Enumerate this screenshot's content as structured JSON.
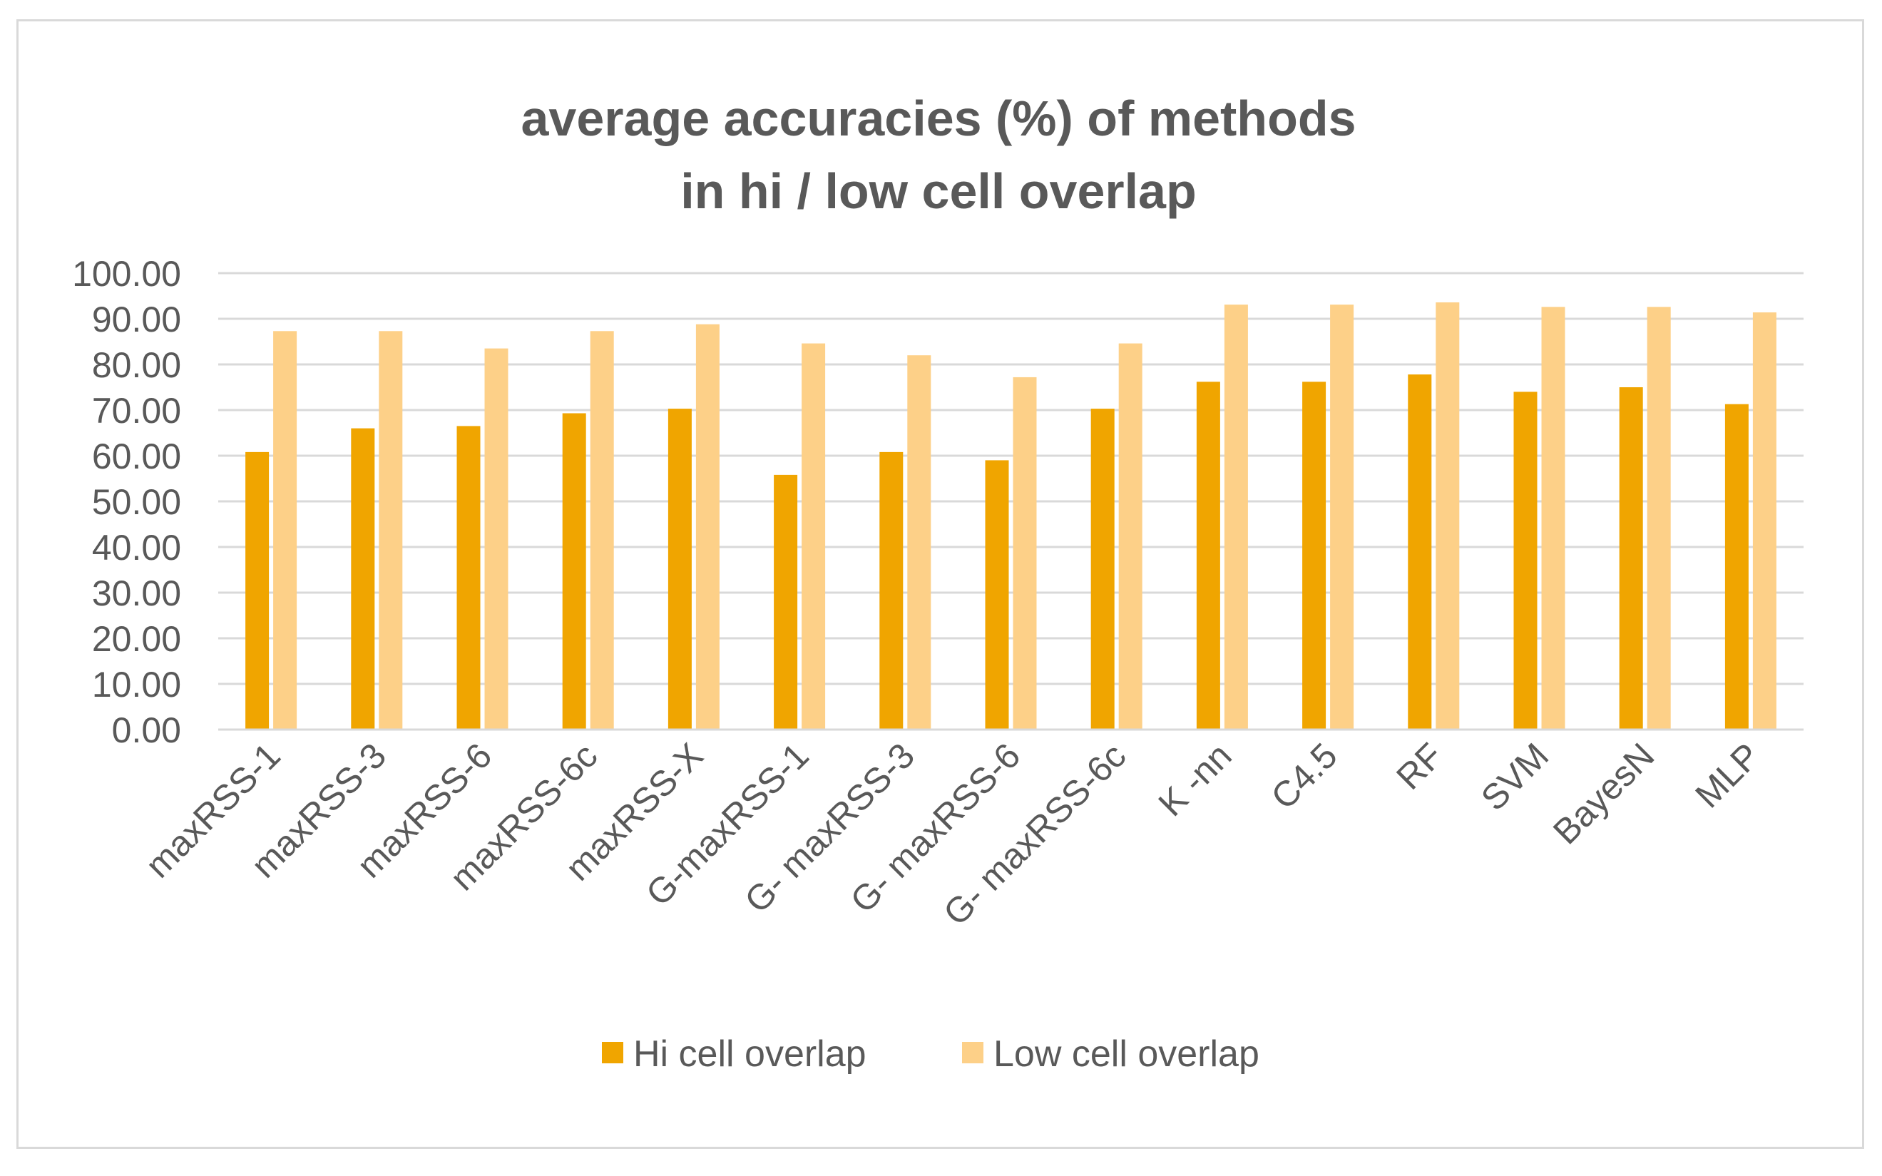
{
  "chart_data": {
    "type": "bar",
    "title_lines": [
      "average accuracies (%) of methods",
      "in hi / low cell overlap"
    ],
    "xlabel": "",
    "ylabel": "",
    "ylim": [
      0,
      100
    ],
    "ytick_step": 10,
    "ytick_labels": [
      "0.00",
      "10.00",
      "20.00",
      "30.00",
      "40.00",
      "50.00",
      "60.00",
      "70.00",
      "80.00",
      "90.00",
      "100.00"
    ],
    "grid": true,
    "legend_position": "bottom",
    "categories": [
      "maxRSS-1",
      "maxRSS-3",
      "maxRSS-6",
      "maxRSS-6c",
      "maxRSS-X",
      "G-maxRSS-1",
      "G- maxRSS-3",
      "G- maxRSS-6",
      "G- maxRSS-6c",
      "K -nn",
      "C4.5",
      "RF",
      "SVM",
      "BayesN",
      "MLP"
    ],
    "series": [
      {
        "name": "Hi cell overlap",
        "color": "#f0a500",
        "values": [
          60.8,
          66.0,
          66.5,
          69.3,
          70.3,
          55.8,
          60.8,
          59.0,
          70.3,
          76.2,
          76.2,
          77.8,
          74.0,
          75.0,
          71.3
        ]
      },
      {
        "name": "Low cell overlap",
        "color": "#fdd088",
        "values": [
          87.3,
          87.3,
          83.5,
          87.3,
          88.8,
          84.6,
          82.0,
          77.2,
          84.6,
          93.1,
          93.1,
          93.6,
          92.6,
          92.6,
          91.4
        ]
      }
    ]
  }
}
